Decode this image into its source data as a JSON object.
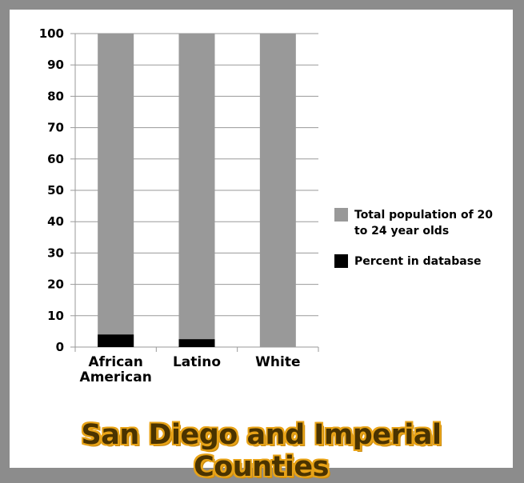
{
  "chart_data": {
    "type": "bar",
    "title": "San Diego and Imperial Counties",
    "categories": [
      {
        "lines": [
          "African",
          "American"
        ]
      },
      {
        "lines": [
          "Latino"
        ]
      },
      {
        "lines": [
          "White"
        ]
      }
    ],
    "series": [
      {
        "name": "Total population of 20 to 24 year olds",
        "values": [
          100,
          100,
          100
        ],
        "color": "#999999"
      },
      {
        "name": "Percent in database",
        "values": [
          4,
          2.5,
          0
        ],
        "color": "#000000"
      }
    ],
    "y_ticks": [
      "0",
      "10",
      "20",
      "30",
      "40",
      "50",
      "60",
      "70",
      "80",
      "90",
      "100"
    ],
    "ylim": [
      0,
      100
    ],
    "grid": true,
    "legend_position": "right",
    "legend_lines": [
      [
        "Total population of 20",
        "to 24 year olds"
      ],
      [
        "Percent in database"
      ]
    ],
    "xlabel": "",
    "ylabel": ""
  }
}
